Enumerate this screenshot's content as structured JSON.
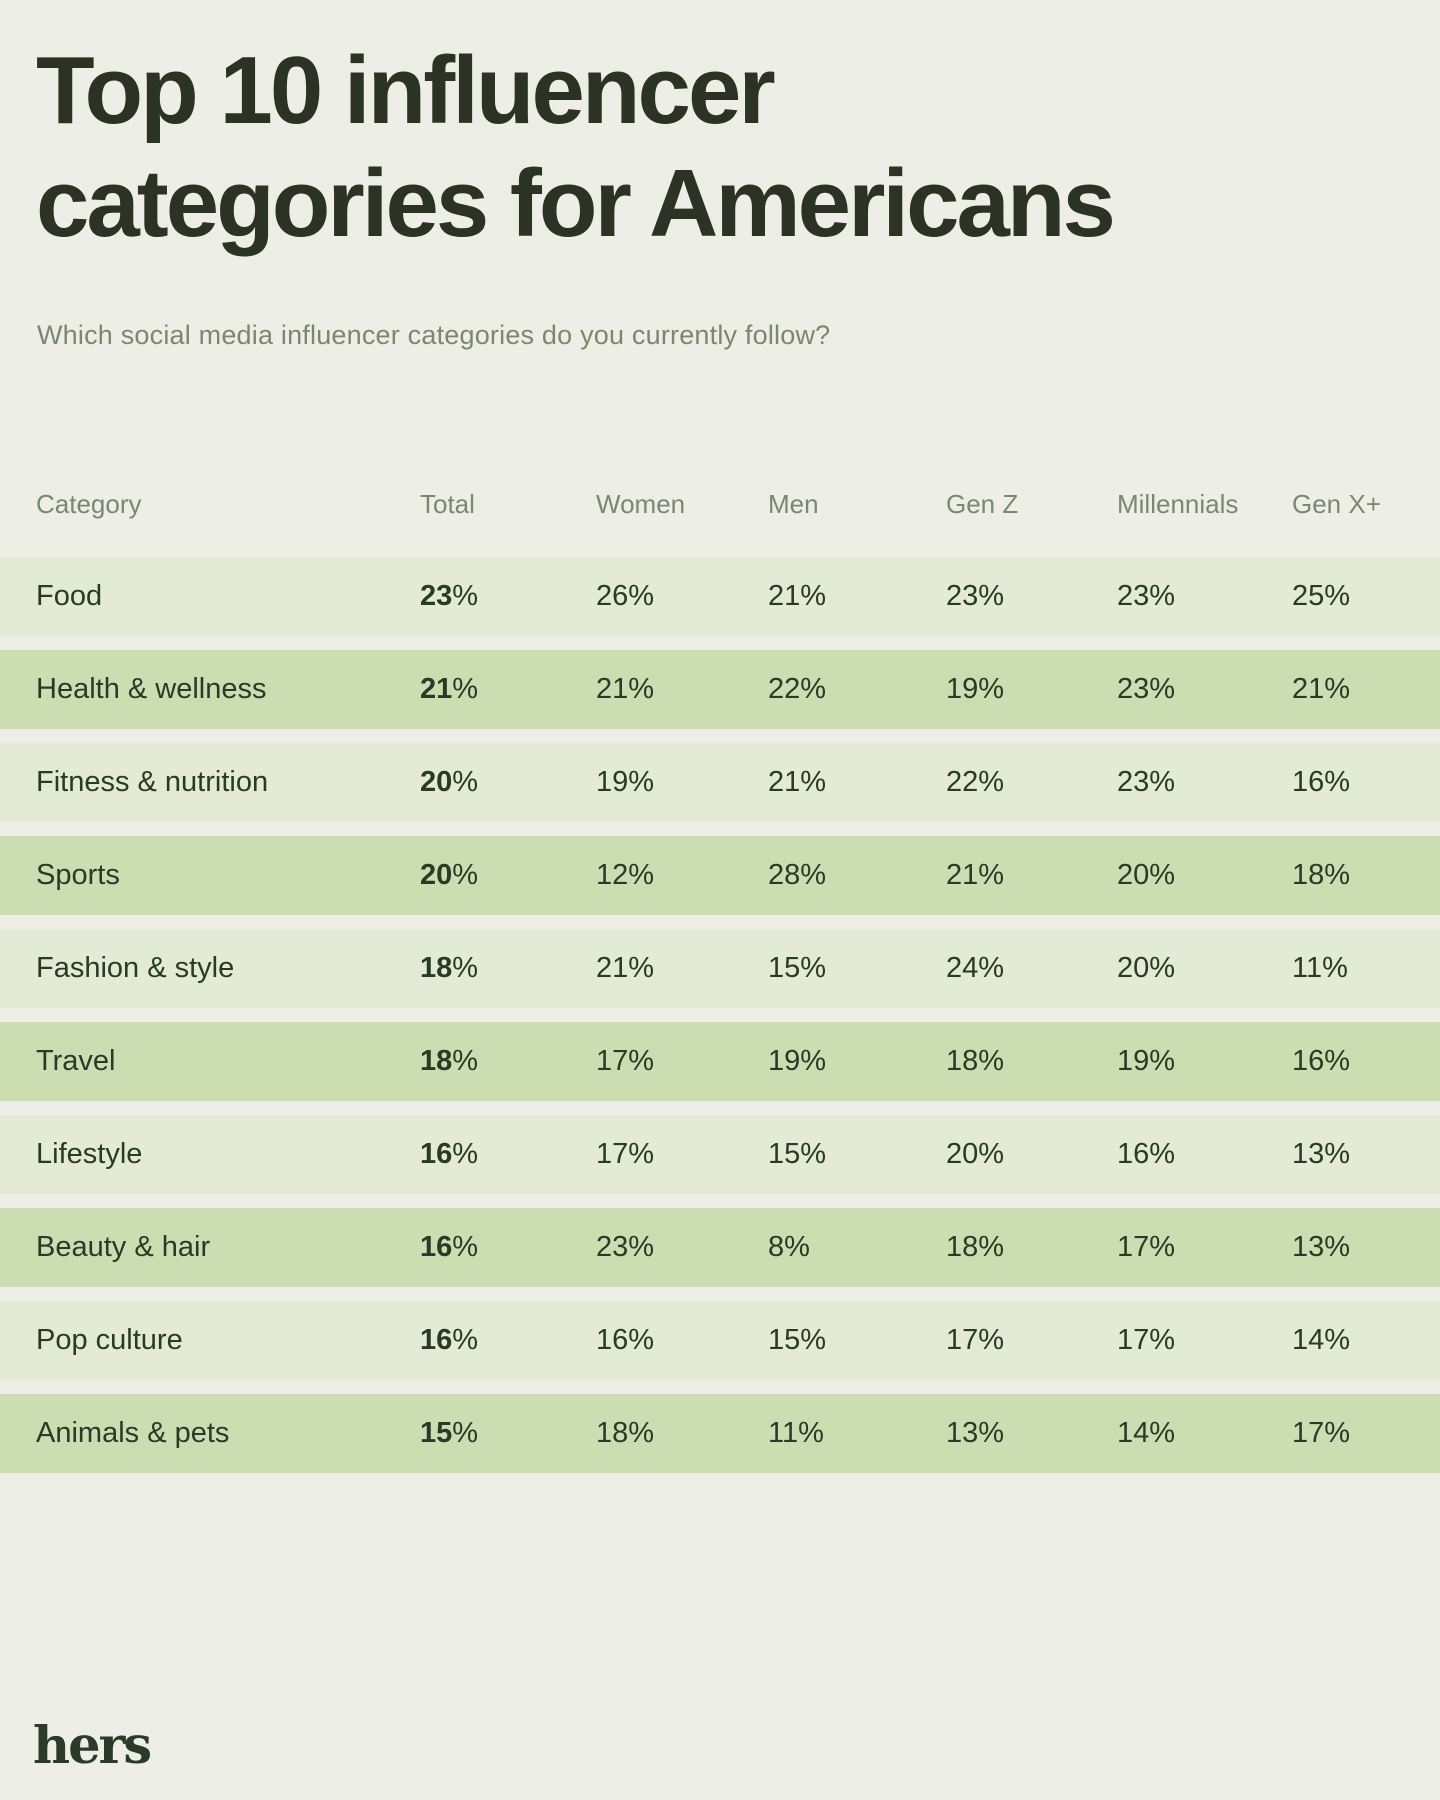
{
  "header": {
    "title_line1": "Top 10 influencer",
    "title_line2": "categories for Americans",
    "subtitle": "Which social media influencer categories do you currently follow?"
  },
  "footer": {
    "brand": "hers"
  },
  "colors": {
    "page_background": "#EDEFE6",
    "row_light": "#E3EAD5",
    "row_dark": "#CCDDB2",
    "text_dark": "#2B3A26",
    "text_muted": "#7B8871",
    "title": "#2B3424"
  },
  "chart_data": {
    "type": "table",
    "title": "Top 10 influencer categories for Americans",
    "subtitle": "Which social media influencer categories do you currently follow?",
    "columns": [
      "Category",
      "Total",
      "Women",
      "Men",
      "Gen Z",
      "Millennials",
      "Gen X+"
    ],
    "rows": [
      [
        "Food",
        "23%",
        "26%",
        "21%",
        "23%",
        "23%",
        "25%"
      ],
      [
        "Health & wellness",
        "21%",
        "21%",
        "22%",
        "19%",
        "23%",
        "21%"
      ],
      [
        "Fitness & nutrition",
        "20%",
        "19%",
        "21%",
        "22%",
        "23%",
        "16%"
      ],
      [
        "Sports",
        "20%",
        "12%",
        "28%",
        "21%",
        "20%",
        "18%"
      ],
      [
        "Fashion & style",
        "18%",
        "21%",
        "15%",
        "24%",
        "20%",
        "11%"
      ],
      [
        "Travel",
        "18%",
        "17%",
        "19%",
        "18%",
        "19%",
        "16%"
      ],
      [
        "Lifestyle",
        "16%",
        "17%",
        "15%",
        "20%",
        "16%",
        "13%"
      ],
      [
        "Beauty & hair",
        "16%",
        "23%",
        "8%",
        "18%",
        "17%",
        "13%"
      ],
      [
        "Pop culture",
        "16%",
        "16%",
        "15%",
        "17%",
        "17%",
        "14%"
      ],
      [
        "Animals & pets",
        "15%",
        "18%",
        "11%",
        "13%",
        "14%",
        "17%"
      ]
    ],
    "layout": {
      "legend_position": "none",
      "grid": "off",
      "row_striping": "alternating light/dark green full-bleed bands",
      "emphasis": "Total column values shown in bold"
    }
  }
}
